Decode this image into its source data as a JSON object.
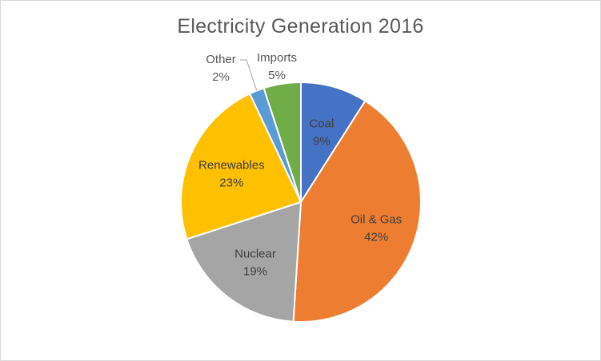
{
  "chart_data": {
    "type": "pie",
    "title": "Electricity Generation 2016",
    "categories": [
      "Coal",
      "Oil & Gas",
      "Nuclear",
      "Renewables",
      "Other",
      "Imports"
    ],
    "values": [
      9,
      42,
      19,
      23,
      2,
      5
    ],
    "labels": [
      "9%",
      "42%",
      "19%",
      "23%",
      "2%",
      "5%"
    ],
    "colors": [
      "#4472c4",
      "#ed7d31",
      "#a5a5a5",
      "#ffc000",
      "#5b9bd5",
      "#70ad47"
    ],
    "label_colors": [
      "#404040",
      "#404040",
      "#404040",
      "#404040",
      "#595959",
      "#595959"
    ],
    "legend": "none",
    "data_labels": "category and percentage"
  }
}
